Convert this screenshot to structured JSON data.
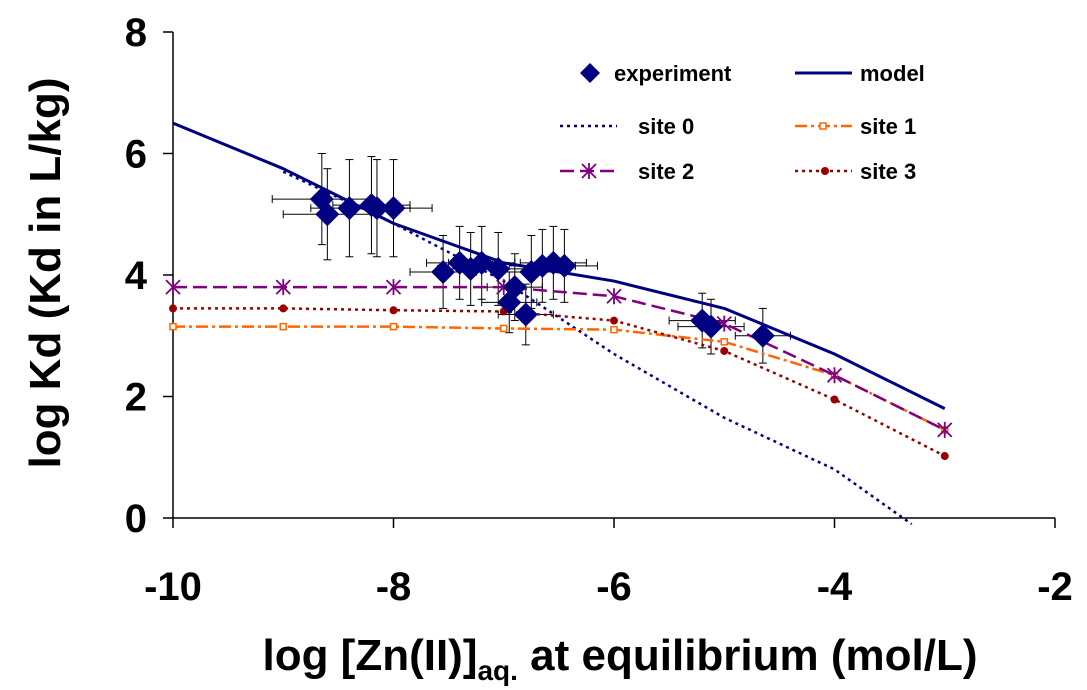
{
  "chart_data": {
    "type": "scatter",
    "xlabel": {
      "main": "log [Zn(II)]",
      "sub": "aq.",
      "tail": " at equilibrium  (mol/L)"
    },
    "ylabel": "log Kd (Kd in L/kg)",
    "xlim": [
      -10,
      -2
    ],
    "ylim": [
      0,
      8
    ],
    "x_ticks": [
      -10,
      -8,
      -6,
      -4,
      -2
    ],
    "y_ticks": [
      0,
      2,
      4,
      6,
      8
    ],
    "x_tick_labels": [
      "-10",
      "-8",
      "-6",
      "-4",
      "-2"
    ],
    "y_tick_labels": [
      "0",
      "2",
      "4",
      "6",
      "8"
    ],
    "grid": false,
    "legend_position": "top-right",
    "series": [
      {
        "key": "experiment",
        "name": "experiment",
        "kind": "points",
        "color": "#000080",
        "points": [
          {
            "x": -8.65,
            "y": 5.25,
            "ey": 0.75,
            "ex": 0.45
          },
          {
            "x": -8.6,
            "y": 5.0,
            "ey": 0.75,
            "ex": 0.4
          },
          {
            "x": -8.4,
            "y": 5.1,
            "ey": 0.8,
            "ex": 0.35
          },
          {
            "x": -8.2,
            "y": 5.15,
            "ey": 0.8,
            "ex": 0.35
          },
          {
            "x": -8.15,
            "y": 5.1,
            "ey": 0.8,
            "ex": 0.3
          },
          {
            "x": -8.0,
            "y": 5.1,
            "ey": 0.8,
            "ex": 0.35
          },
          {
            "x": -7.55,
            "y": 4.05,
            "ey": 0.6,
            "ex": 0.3
          },
          {
            "x": -7.4,
            "y": 4.2,
            "ey": 0.6,
            "ex": 0.3
          },
          {
            "x": -7.3,
            "y": 4.1,
            "ey": 0.6,
            "ex": 0.3
          },
          {
            "x": -7.2,
            "y": 4.2,
            "ey": 0.6,
            "ex": 0.3
          },
          {
            "x": -7.05,
            "y": 4.1,
            "ey": 0.6,
            "ex": 0.3
          },
          {
            "x": -6.95,
            "y": 3.55,
            "ey": 0.5,
            "ex": 0.25
          },
          {
            "x": -6.9,
            "y": 3.8,
            "ey": 0.55,
            "ex": 0.25
          },
          {
            "x": -6.8,
            "y": 3.35,
            "ey": 0.5,
            "ex": 0.25
          },
          {
            "x": -6.75,
            "y": 4.05,
            "ey": 0.6,
            "ex": 0.3
          },
          {
            "x": -6.65,
            "y": 4.15,
            "ey": 0.6,
            "ex": 0.3
          },
          {
            "x": -6.55,
            "y": 4.2,
            "ey": 0.6,
            "ex": 0.3
          },
          {
            "x": -6.45,
            "y": 4.15,
            "ey": 0.6,
            "ex": 0.3
          },
          {
            "x": -5.2,
            "y": 3.25,
            "ey": 0.45,
            "ex": 0.3
          },
          {
            "x": -5.12,
            "y": 3.15,
            "ey": 0.45,
            "ex": 0.3
          },
          {
            "x": -4.65,
            "y": 3.0,
            "ey": 0.45,
            "ex": 0.25
          }
        ]
      },
      {
        "key": "model",
        "name": "model",
        "kind": "line",
        "color": "#000080",
        "points": [
          [
            -10,
            6.5
          ],
          [
            -9,
            5.75
          ],
          [
            -8,
            4.85
          ],
          [
            -7,
            4.2
          ],
          [
            -6,
            3.9
          ],
          [
            -5,
            3.45
          ],
          [
            -4,
            2.7
          ],
          [
            -3,
            1.8
          ]
        ]
      },
      {
        "key": "site0",
        "name": "site 0",
        "kind": "line",
        "color": "#000080",
        "points": [
          [
            -9,
            5.7
          ],
          [
            -8,
            4.85
          ],
          [
            -7,
            3.9
          ],
          [
            -6,
            2.7
          ],
          [
            -5,
            1.65
          ],
          [
            -4,
            0.8
          ],
          [
            -3.3,
            -0.1
          ]
        ]
      },
      {
        "key": "site1",
        "name": "site 1",
        "kind": "line",
        "color": "#FF6600",
        "points": [
          [
            -10,
            3.15
          ],
          [
            -9,
            3.15
          ],
          [
            -8,
            3.15
          ],
          [
            -7,
            3.12
          ],
          [
            -6,
            3.1
          ],
          [
            -5,
            2.9
          ],
          [
            -4,
            2.35
          ],
          [
            -3,
            1.45
          ]
        ]
      },
      {
        "key": "site2",
        "name": "site 2",
        "kind": "line",
        "color": "#800080",
        "points": [
          [
            -10,
            3.8
          ],
          [
            -9,
            3.8
          ],
          [
            -8,
            3.8
          ],
          [
            -7,
            3.8
          ],
          [
            -6,
            3.65
          ],
          [
            -5,
            3.2
          ],
          [
            -4,
            2.35
          ],
          [
            -3,
            1.45
          ]
        ]
      },
      {
        "key": "site3",
        "name": "site 3",
        "kind": "line",
        "color": "#990000",
        "points": [
          [
            -10,
            3.45
          ],
          [
            -9,
            3.45
          ],
          [
            -8,
            3.42
          ],
          [
            -7,
            3.4
          ],
          [
            -6,
            3.25
          ],
          [
            -5,
            2.75
          ],
          [
            -4,
            1.95
          ],
          [
            -3,
            1.02
          ]
        ]
      }
    ]
  }
}
